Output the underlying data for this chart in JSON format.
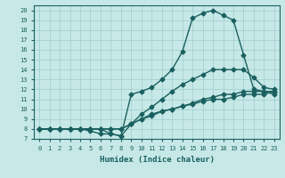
{
  "xlabel": "Humidex (Indice chaleur)",
  "xlim": [
    -0.5,
    23.5
  ],
  "ylim": [
    7,
    20.5
  ],
  "xticks": [
    0,
    1,
    2,
    3,
    4,
    5,
    6,
    7,
    8,
    9,
    10,
    11,
    12,
    13,
    14,
    15,
    16,
    17,
    18,
    19,
    20,
    21,
    22,
    23
  ],
  "yticks": [
    7,
    8,
    9,
    10,
    11,
    12,
    13,
    14,
    15,
    16,
    17,
    18,
    19,
    20
  ],
  "bg_color": "#c6e8e6",
  "grid_color": "#9ecece",
  "line_color": "#1a6060",
  "line_width": 1.0,
  "marker": "D",
  "marker_size": 2.5,
  "lines": [
    {
      "x": [
        0,
        1,
        2,
        3,
        4,
        5,
        6,
        7,
        8,
        9,
        10,
        11,
        12,
        13,
        14,
        15,
        16,
        17,
        18,
        19,
        20,
        21,
        22,
        23
      ],
      "y": [
        8,
        8,
        8,
        8,
        8,
        8,
        8,
        7.5,
        7.3,
        11.5,
        11.8,
        12.2,
        13.0,
        14.0,
        15.8,
        19.2,
        19.7,
        20.0,
        19.5,
        19.0,
        15.5,
        12.0,
        11.8,
        11.5
      ]
    },
    {
      "x": [
        0,
        1,
        2,
        3,
        4,
        5,
        6,
        7,
        8,
        9,
        10,
        11,
        12,
        13,
        14,
        15,
        16,
        17,
        18,
        19,
        20,
        21,
        22,
        23
      ],
      "y": [
        8,
        8,
        8,
        8,
        8,
        8,
        8,
        8,
        8,
        8.5,
        9.5,
        10.2,
        11.0,
        11.8,
        12.5,
        13.0,
        13.5,
        14.0,
        14.0,
        14.0,
        14.0,
        13.2,
        12.2,
        12.0
      ]
    },
    {
      "x": [
        0,
        1,
        2,
        3,
        4,
        5,
        6,
        7,
        8,
        9,
        10,
        11,
        12,
        13,
        14,
        15,
        16,
        17,
        18,
        19,
        20,
        21,
        22,
        23
      ],
      "y": [
        8,
        8,
        8,
        8,
        8,
        8,
        8,
        8,
        8,
        8.5,
        9.0,
        9.5,
        9.8,
        10.0,
        10.3,
        10.5,
        10.8,
        11.0,
        11.0,
        11.2,
        11.5,
        11.5,
        11.5,
        11.8
      ]
    },
    {
      "x": [
        0,
        1,
        2,
        3,
        4,
        5,
        6,
        7,
        8,
        9,
        10,
        11,
        12,
        13,
        14,
        15,
        16,
        17,
        18,
        19,
        20,
        21,
        22,
        23
      ],
      "y": [
        8,
        8,
        8,
        8,
        8,
        7.8,
        7.5,
        7.5,
        7.3,
        8.5,
        9.0,
        9.3,
        9.8,
        10.0,
        10.3,
        10.6,
        11.0,
        11.2,
        11.5,
        11.5,
        11.8,
        11.8,
        11.8,
        11.8
      ]
    }
  ]
}
